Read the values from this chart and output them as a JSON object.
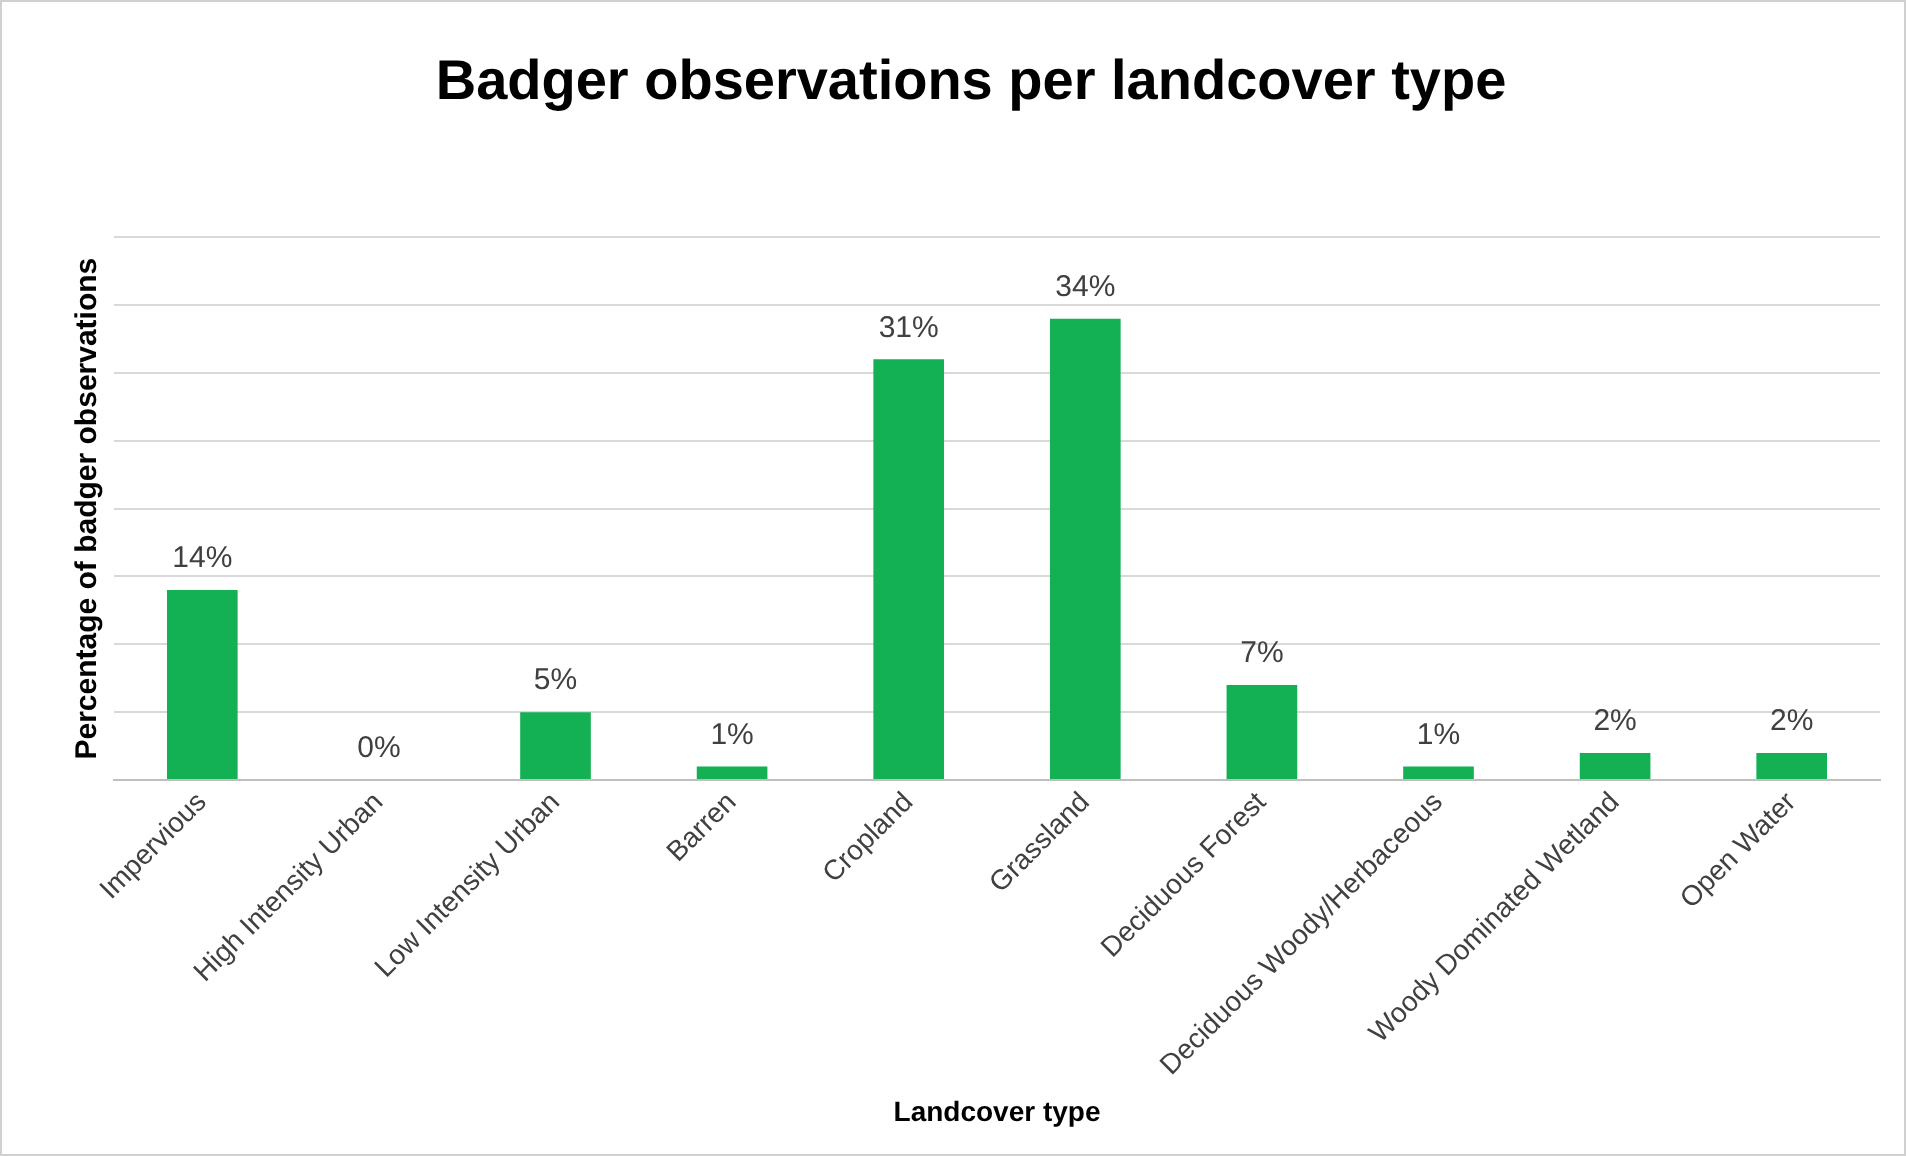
{
  "chart_data": {
    "type": "bar",
    "title": "Badger observations per landcover type",
    "xlabel": "Landcover type",
    "ylabel": "Percentage of badger observations",
    "categories": [
      "Impervious",
      "High Intensity Urban",
      "Low Intensity Urban",
      "Barren",
      "Cropland",
      "Grassland",
      "Deciduous Forest",
      "Deciduous Woody/Herbaceous",
      "Woody Dominated Wetland",
      "Open Water"
    ],
    "values": [
      14,
      0,
      5,
      1,
      31,
      34,
      7,
      1,
      2,
      2
    ],
    "value_labels": [
      "14%",
      "0%",
      "5%",
      "1%",
      "31%",
      "34%",
      "7%",
      "1%",
      "2%",
      "2%"
    ],
    "color": "#13b054",
    "ylim": [
      0,
      40
    ],
    "yticks": [
      {
        "value": 0,
        "label": null
      },
      {
        "value": 5,
        "label": null
      },
      {
        "value": 10,
        "label": null
      },
      {
        "value": 15,
        "label": null
      },
      {
        "value": 20,
        "label": null
      },
      {
        "value": 25,
        "label": null
      },
      {
        "value": 30,
        "label": null
      },
      {
        "value": 35,
        "label": null
      },
      {
        "value": 40,
        "label": null
      }
    ],
    "grid": "y",
    "tick_labels": "x",
    "legend": false
  }
}
